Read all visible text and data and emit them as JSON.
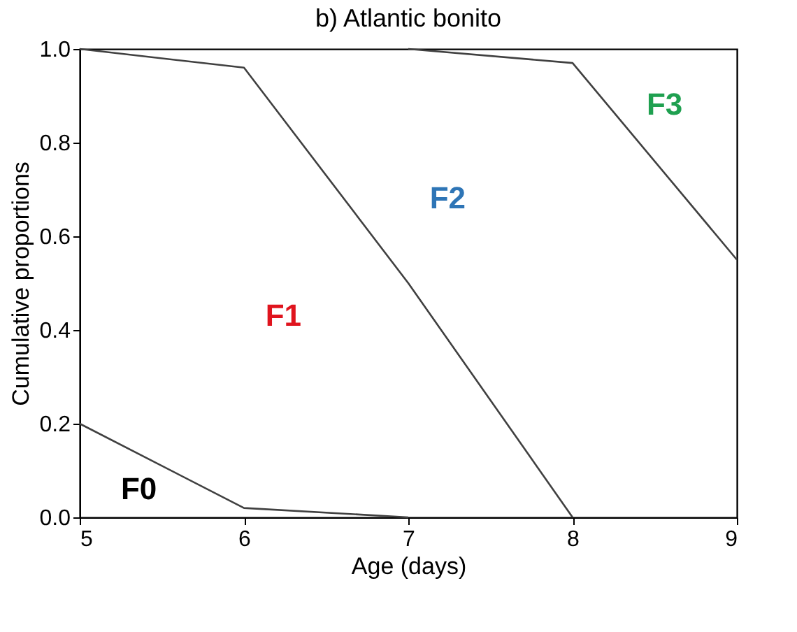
{
  "chart_data": {
    "type": "line",
    "title": "b) Atlantic bonito",
    "xlabel": "Age (days)",
    "ylabel": "Cumulative proportions",
    "xlim": [
      5,
      9
    ],
    "xticks": [
      5,
      6,
      7,
      8,
      9
    ],
    "ylim": [
      0,
      1
    ],
    "yticks": [
      {
        "value": 0,
        "label": "0.0"
      },
      {
        "value": 0.2,
        "label": "0.2"
      },
      {
        "value": 0.4,
        "label": "0.4"
      },
      {
        "value": 0.6,
        "label": "0.6"
      },
      {
        "value": 0.8,
        "label": "0.8"
      },
      {
        "value": 1,
        "label": "1.0"
      }
    ],
    "grid": false,
    "marker": "none",
    "line_style": "solid",
    "series": [
      {
        "color": "#404040",
        "x": [
          5,
          6,
          7
        ],
        "values": [
          0.2,
          0.02,
          0.0
        ]
      },
      {
        "color": "#404040",
        "x": [
          5,
          6,
          7,
          8
        ],
        "values": [
          1.0,
          0.96,
          0.5,
          0.0
        ]
      },
      {
        "color": "#404040",
        "x": [
          7,
          8,
          9
        ],
        "values": [
          1.0,
          0.97,
          0.55
        ]
      }
    ],
    "annotations": [
      "F0",
      "F1",
      "F2",
      "F3"
    ]
  }
}
